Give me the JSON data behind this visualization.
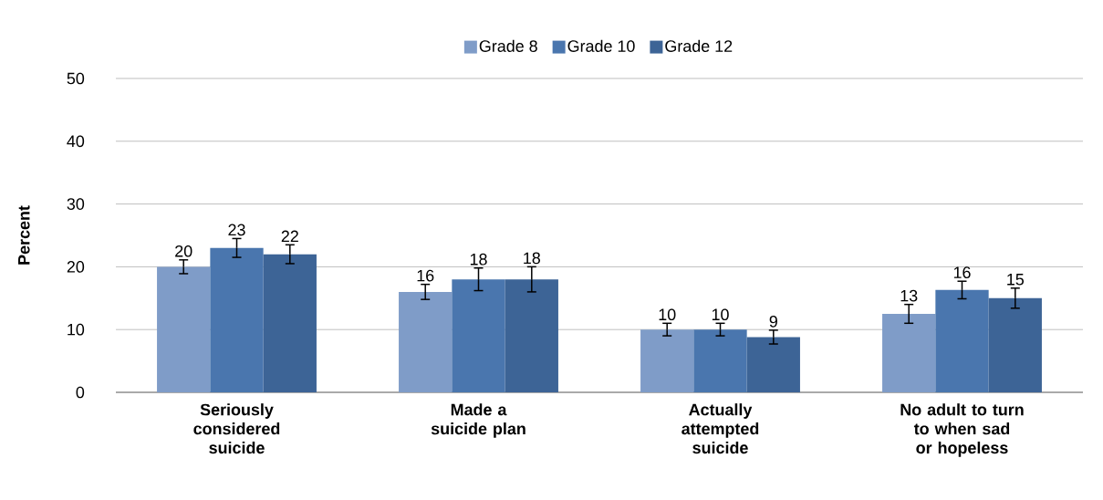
{
  "chart_data": {
    "type": "bar",
    "ylabel": "Percent",
    "categories": [
      "Seriously considered suicide",
      "Made a suicide plan",
      "Actually attempted suicide",
      "No adult to turn to when sad or hopeless"
    ],
    "series": [
      {
        "name": "Grade 8",
        "color": "#7f9cc8",
        "values": [
          20,
          16,
          10,
          12.5
        ],
        "errors": [
          1.1,
          1.2,
          1.0,
          1.5
        ],
        "value_labels": [
          "20",
          "16",
          "10",
          "13"
        ]
      },
      {
        "name": "Grade 10",
        "color": "#4a76ae",
        "values": [
          23,
          18,
          10,
          16.3
        ],
        "errors": [
          1.5,
          1.8,
          1.0,
          1.4
        ],
        "value_labels": [
          "23",
          "18",
          "10",
          "16"
        ]
      },
      {
        "name": "Grade 12",
        "color": "#3d6496",
        "values": [
          22,
          18,
          8.8,
          15
        ],
        "errors": [
          1.5,
          2.0,
          1.1,
          1.6
        ],
        "value_labels": [
          "22",
          "18",
          "9",
          "15"
        ]
      }
    ],
    "ylim": [
      0,
      50
    ],
    "yticks": [
      0,
      10,
      20,
      30,
      40,
      50
    ],
    "grid": "y",
    "legend": "top"
  }
}
